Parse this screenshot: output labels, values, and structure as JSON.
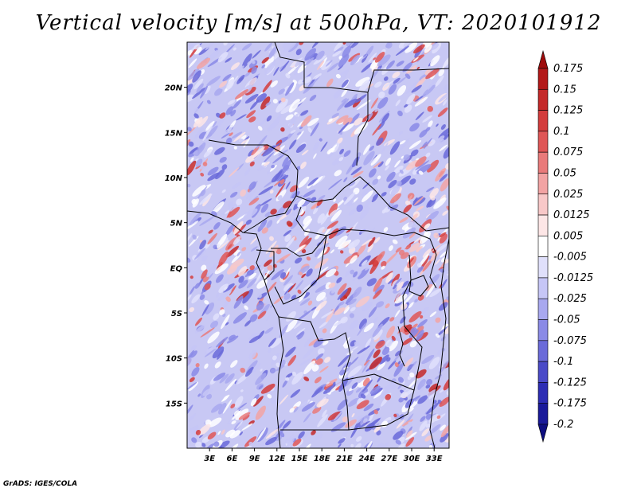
{
  "title": "Vertical velocity [m/s] at 500hPa, VT: 2020101912",
  "footer": "GrADS: IGES/COLA",
  "map": {
    "lon_range": [
      0,
      35
    ],
    "lat_range": [
      -20,
      25
    ],
    "lon_ticks": [
      "3E",
      "6E",
      "9E",
      "12E",
      "15E",
      "18E",
      "21E",
      "24E",
      "27E",
      "30E",
      "33E"
    ],
    "lon_tick_values": [
      3,
      6,
      9,
      12,
      15,
      18,
      21,
      24,
      27,
      30,
      33
    ],
    "lat_ticks": [
      "20N",
      "15N",
      "10N",
      "5N",
      "EQ",
      "5S",
      "10S",
      "15S"
    ],
    "lat_tick_values": [
      20,
      15,
      10,
      5,
      0,
      -5,
      -10,
      -15
    ]
  },
  "colorbar": {
    "labels": [
      "0.175",
      "0.15",
      "0.125",
      "0.1",
      "0.075",
      "0.05",
      "0.025",
      "0.0125",
      "0.005",
      "-0.005",
      "-0.0125",
      "-0.025",
      "-0.05",
      "-0.075",
      "-0.1",
      "-0.125",
      "-0.175",
      "-0.2"
    ],
    "colors": [
      "#9e0b0b",
      "#b31818",
      "#c42929",
      "#d33c3c",
      "#df5656",
      "#e97a7a",
      "#f2a3a3",
      "#f8c8c8",
      "#fde6e6",
      "#ffffff",
      "#e0e0fb",
      "#c6c6f6",
      "#a8a8ef",
      "#8a8ae6",
      "#6a6ad9",
      "#4a4ac8",
      "#2d2db4",
      "#1a1a9a",
      "#0e0e80"
    ]
  }
}
